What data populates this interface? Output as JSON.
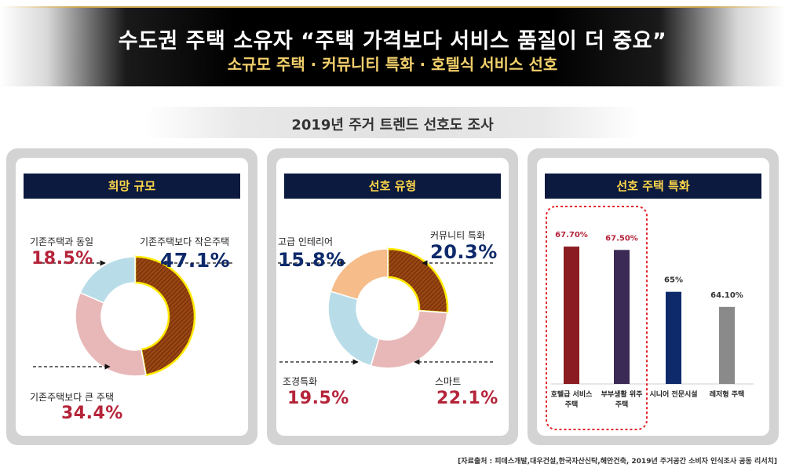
{
  "header": {
    "title": "수도권  주택 소유자 “주택 가격보다 서비스 품질이 더 중요”",
    "subtitle": "소규모 주택 · 커뮤니티 특화 · 호텔식 서비스 선호"
  },
  "survey_title": "2019년 주거 트렌드 선호도 조사",
  "colors": {
    "dark_red": "#8b1c22",
    "dark_purple": "#3a2a55",
    "navy": "#0e2a6b",
    "gray": "#8a8a8a",
    "pink": "#e8b8b8",
    "light_blue": "#b9dde8",
    "peach": "#f6bc8a",
    "brown": "#9a4612",
    "header_bg": "#0c1a3f",
    "header_text": "#ffd84a"
  },
  "chart_data": [
    {
      "type": "pie",
      "title": "희망 규모",
      "slices": [
        {
          "label": "기존주택보다 작은주택",
          "value": 47.1,
          "value_text": "47.1%"
        },
        {
          "label": "기존주택보다 큰 주택",
          "value": 34.4,
          "value_text": "34.4%"
        },
        {
          "label": "기존주택과 동일",
          "value": 18.5,
          "value_text": "18.5%"
        }
      ]
    },
    {
      "type": "pie",
      "title": "선호 유형",
      "slices": [
        {
          "label": "커뮤니티 특화",
          "value": 20.3,
          "value_text": "20.3%"
        },
        {
          "label": "스마트",
          "value": 22.1,
          "value_text": "22.1%"
        },
        {
          "label": "조경특화",
          "value": 19.5,
          "value_text": "19.5%"
        },
        {
          "label": "고급 인테리어",
          "value": 15.8,
          "value_text": "15.8%"
        }
      ]
    },
    {
      "type": "bar",
      "title": "선호 주택 특화",
      "categories": [
        "호텔급 서비스 주택",
        "부부생활 위주 주택",
        "시니어 전문시설",
        "레저형 주택"
      ],
      "category_lines": [
        [
          "호텔급 서비스",
          "주택"
        ],
        [
          "부부생활 위주",
          "주택"
        ],
        [
          "시니어 전문시설"
        ],
        [
          "레저형 주택"
        ]
      ],
      "values": [
        67.7,
        67.5,
        65,
        64.1
      ],
      "value_labels": [
        "67.70%",
        "67.50%",
        "65%",
        "64.10%"
      ],
      "highlight": [
        0,
        1
      ]
    }
  ],
  "source": "[자료출처 : 피데스개발,대우건설,한국자산신탁,해안건축, 2019년 주거공간 소비자 인식조사 공동 리서치]"
}
